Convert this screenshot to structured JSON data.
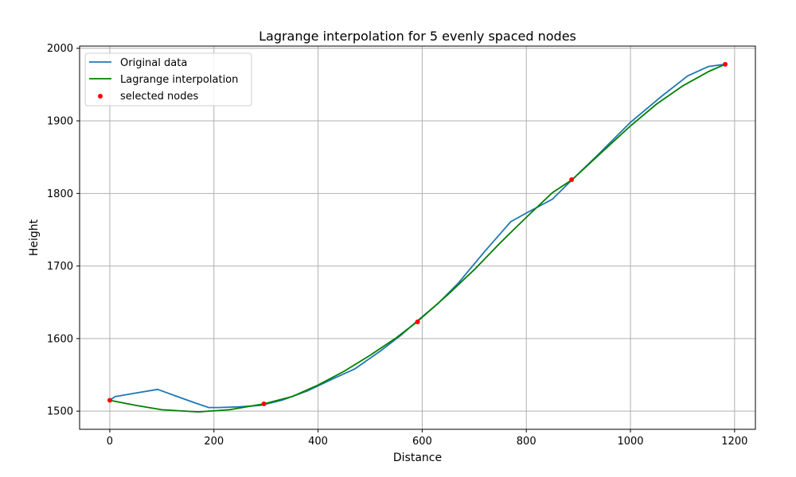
{
  "chart_data": {
    "type": "line",
    "title": "Lagrange interpolation for 5 evenly spaced nodes",
    "xlabel": "Distance",
    "ylabel": "Height",
    "xlim": [
      -58,
      1240
    ],
    "ylim": [
      1475,
      2003
    ],
    "xticks": [
      0,
      200,
      400,
      600,
      800,
      1000,
      1200
    ],
    "yticks": [
      1500,
      1600,
      1700,
      1800,
      1900,
      2000
    ],
    "grid": true,
    "legend_position": "top-left",
    "series": [
      {
        "name": "Original data",
        "kind": "line",
        "color": "#1f77b4",
        "points": [
          [
            0,
            1515
          ],
          [
            10,
            1520
          ],
          [
            50,
            1525
          ],
          [
            92,
            1530
          ],
          [
            130,
            1520
          ],
          [
            165,
            1511
          ],
          [
            190,
            1505
          ],
          [
            210,
            1505
          ],
          [
            250,
            1506
          ],
          [
            290,
            1508
          ],
          [
            330,
            1515
          ],
          [
            380,
            1528
          ],
          [
            430,
            1545
          ],
          [
            470,
            1558
          ],
          [
            520,
            1583
          ],
          [
            560,
            1605
          ],
          [
            590,
            1624
          ],
          [
            630,
            1648
          ],
          [
            670,
            1677
          ],
          [
            720,
            1720
          ],
          [
            770,
            1761
          ],
          [
            800,
            1773
          ],
          [
            850,
            1792
          ],
          [
            888,
            1819
          ],
          [
            940,
            1855
          ],
          [
            1000,
            1898
          ],
          [
            1060,
            1934
          ],
          [
            1110,
            1962
          ],
          [
            1150,
            1975
          ],
          [
            1182,
            1978
          ]
        ]
      },
      {
        "name": "Lagrange interpolation",
        "kind": "line",
        "color": "#008000",
        "points": [
          [
            0,
            1515
          ],
          [
            50,
            1508
          ],
          [
            100,
            1502
          ],
          [
            170,
            1499
          ],
          [
            230,
            1502
          ],
          [
            296,
            1510
          ],
          [
            350,
            1520
          ],
          [
            400,
            1536
          ],
          [
            450,
            1555
          ],
          [
            500,
            1577
          ],
          [
            550,
            1601
          ],
          [
            590,
            1623
          ],
          [
            650,
            1661
          ],
          [
            700,
            1695
          ],
          [
            750,
            1732
          ],
          [
            800,
            1767
          ],
          [
            850,
            1801
          ],
          [
            888,
            1819
          ],
          [
            950,
            1860
          ],
          [
            1000,
            1893
          ],
          [
            1050,
            1923
          ],
          [
            1100,
            1948
          ],
          [
            1150,
            1968
          ],
          [
            1182,
            1978
          ]
        ]
      },
      {
        "name": "selected nodes",
        "kind": "scatter",
        "color": "#ff0000",
        "points": [
          [
            0,
            1515
          ],
          [
            296,
            1510
          ],
          [
            591,
            1623
          ],
          [
            887,
            1819
          ],
          [
            1182,
            1978
          ]
        ]
      }
    ]
  }
}
